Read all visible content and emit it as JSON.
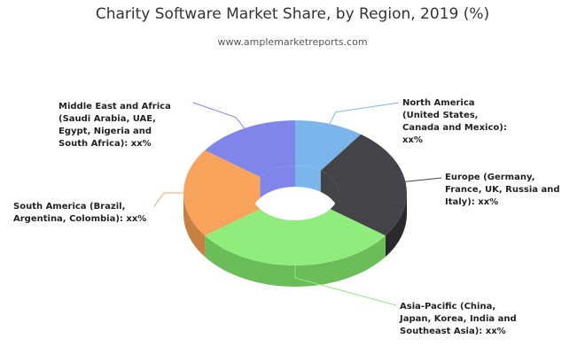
{
  "chart_data": {
    "type": "pie",
    "variant": "3d-donut",
    "title": "Charity Software Market Share, by Region, 2019 (%)",
    "subtitle": "www.amplemarketreports.com",
    "legend": "none",
    "slices": [
      {
        "label": "North America (United States, Canada and Mexico): xx%",
        "share": 0.1,
        "color": "#7cb5ec",
        "side_color": "#5f8fba"
      },
      {
        "label": "Europe (Germany, France, UK, Russia and Italy): xx%",
        "share": 0.25,
        "color": "#434348",
        "side_color": "#2a2a2e"
      },
      {
        "label": "Asia-Pacific (China, Japan, Korea, India and Southeast Asia): xx%",
        "share": 0.3,
        "color": "#90ed7d",
        "side_color": "#6bbd5a"
      },
      {
        "label": "South America (Brazil, Argentina, Colombia): xx%",
        "share": 0.2,
        "color": "#f7a35c",
        "side_color": "#c97f41"
      },
      {
        "label": "Middle East and Africa (Saudi Arabia, UAE, Egypt, Nigeria and South Africa): xx%",
        "share": 0.15,
        "color": "#8085e9",
        "side_color": "#5e62b8"
      }
    ]
  }
}
